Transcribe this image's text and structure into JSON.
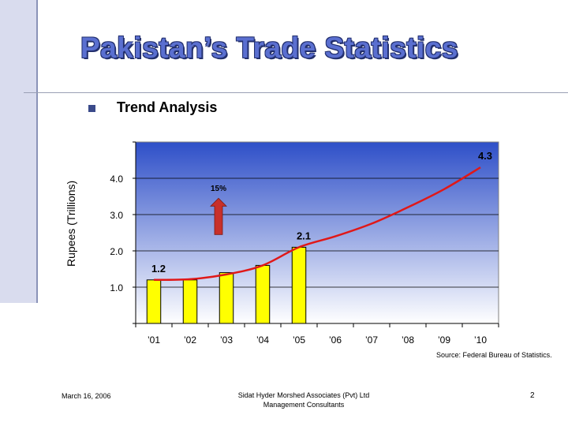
{
  "slide": {
    "title": "Pakistan’s Trade Statistics",
    "bullet": "Trend Analysis",
    "date": "March 16, 2006",
    "company_line1": "Sidat Hyder Morshed Associates (Pvt) Ltd",
    "company_line2": "Management Consultants",
    "page_number": "2",
    "source": "Source: Federal Bureau of Statistics."
  },
  "chart_data": {
    "type": "bar",
    "ylabel": "Rupees (Trillions)",
    "xlabel": "",
    "title": "",
    "categories": [
      "’01",
      "’02",
      "’03",
      "’04",
      "’05",
      "’06",
      "’07",
      "’08",
      "’09",
      "’10"
    ],
    "values": [
      1.2,
      1.2,
      1.4,
      1.6,
      2.1,
      null,
      null,
      null,
      null,
      null
    ],
    "trend_values": [
      1.2,
      1.22,
      1.35,
      1.6,
      2.1,
      2.4,
      2.75,
      3.2,
      3.7,
      4.3
    ],
    "ylim": [
      0,
      5
    ],
    "yticks": [
      "1.0",
      "2.0",
      "3.0",
      "4.0"
    ],
    "ytick_values": [
      1,
      2,
      3,
      4
    ],
    "data_labels": [
      {
        "text": "1.2",
        "index": 0,
        "value": 1.2
      },
      {
        "text": "2.1",
        "index": 4,
        "value": 2.1
      },
      {
        "text": "4.3",
        "index": 9,
        "value": 4.3
      }
    ],
    "growth_annotation": "15%",
    "colors": {
      "bar": "#ffff00",
      "trend": "#e01818",
      "plot_top": "#2e4fc8",
      "plot_bottom": "#ffffff",
      "arrow": "#c8302a"
    },
    "grid": true
  }
}
